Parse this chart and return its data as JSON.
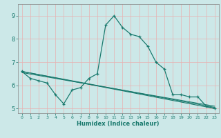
{
  "title": "",
  "xlabel": "Humidex (Indice chaleur)",
  "bg_color": "#cce8e8",
  "line_color": "#1a7a6e",
  "grid_color": "#e8b0b0",
  "xlim": [
    -0.5,
    23.5
  ],
  "ylim": [
    4.8,
    9.5
  ],
  "xticks": [
    0,
    1,
    2,
    3,
    4,
    5,
    6,
    7,
    8,
    9,
    10,
    11,
    12,
    13,
    14,
    15,
    16,
    17,
    18,
    19,
    20,
    21,
    22,
    23
  ],
  "yticks": [
    5,
    6,
    7,
    8,
    9
  ],
  "line1_x": [
    0,
    1,
    2,
    3,
    4,
    5,
    6,
    7,
    8,
    9,
    10,
    11,
    12,
    13,
    14,
    15,
    16,
    17,
    18,
    19,
    20,
    21,
    22,
    23
  ],
  "line1_y": [
    6.6,
    6.3,
    6.2,
    6.1,
    5.6,
    5.2,
    5.8,
    5.9,
    6.3,
    6.5,
    8.6,
    9.0,
    8.5,
    8.2,
    8.1,
    7.7,
    7.0,
    6.7,
    5.6,
    5.6,
    5.5,
    5.5,
    5.1,
    5.0
  ],
  "line2_x": [
    0,
    23
  ],
  "line2_y": [
    6.6,
    5.0
  ],
  "line3_x": [
    0,
    23
  ],
  "line3_y": [
    6.6,
    5.05
  ],
  "line4_x": [
    0,
    23
  ],
  "line4_y": [
    6.55,
    5.1
  ]
}
